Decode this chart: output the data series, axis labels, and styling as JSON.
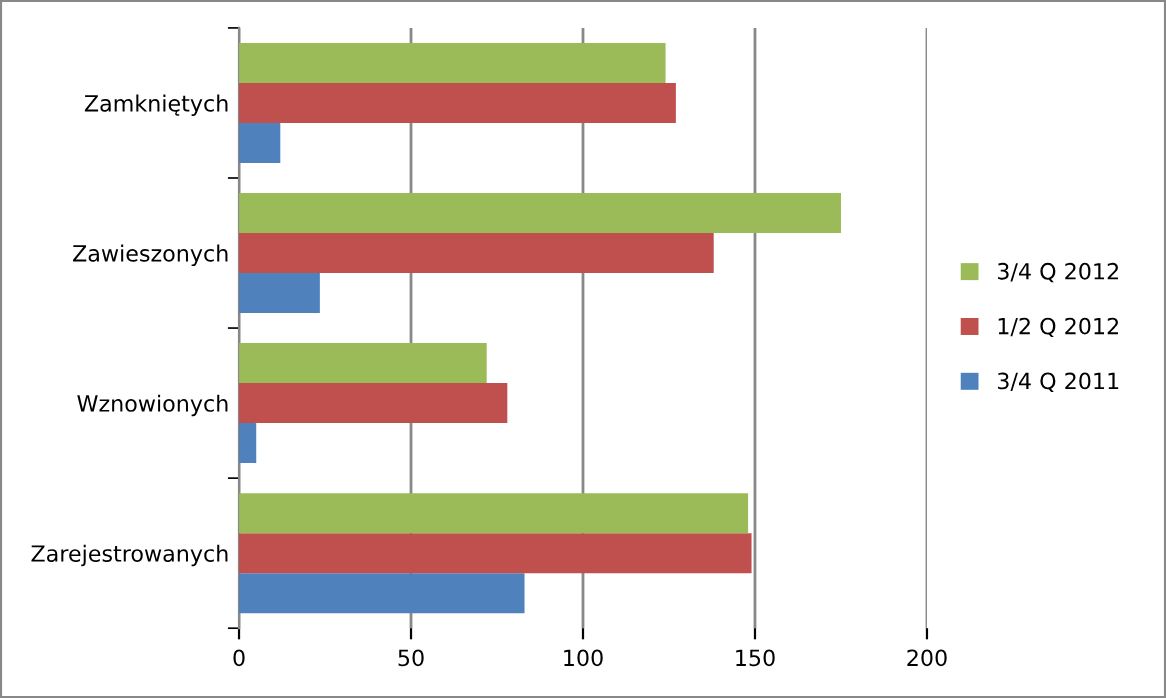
{
  "chart_data": {
    "type": "bar",
    "orientation": "horizontal",
    "categories": [
      "Zamkniętych",
      "Zawieszonych",
      "Wznowionych",
      "Zarejestrowanych"
    ],
    "series": [
      {
        "name": "3/4 Q 2011",
        "color": "#4f81bd",
        "values": [
          12,
          23.5,
          5,
          83
        ]
      },
      {
        "name": "1/2 Q 2012",
        "color": "#c0504d",
        "values": [
          127,
          138,
          78,
          149
        ]
      },
      {
        "name": "3/4 Q 2012",
        "color": "#9bbb59",
        "values": [
          124,
          175,
          72,
          148
        ]
      }
    ],
    "xlim": [
      0,
      200
    ],
    "xticks": [
      0,
      50,
      100,
      150,
      200
    ],
    "grid": "x",
    "legend": "right"
  }
}
